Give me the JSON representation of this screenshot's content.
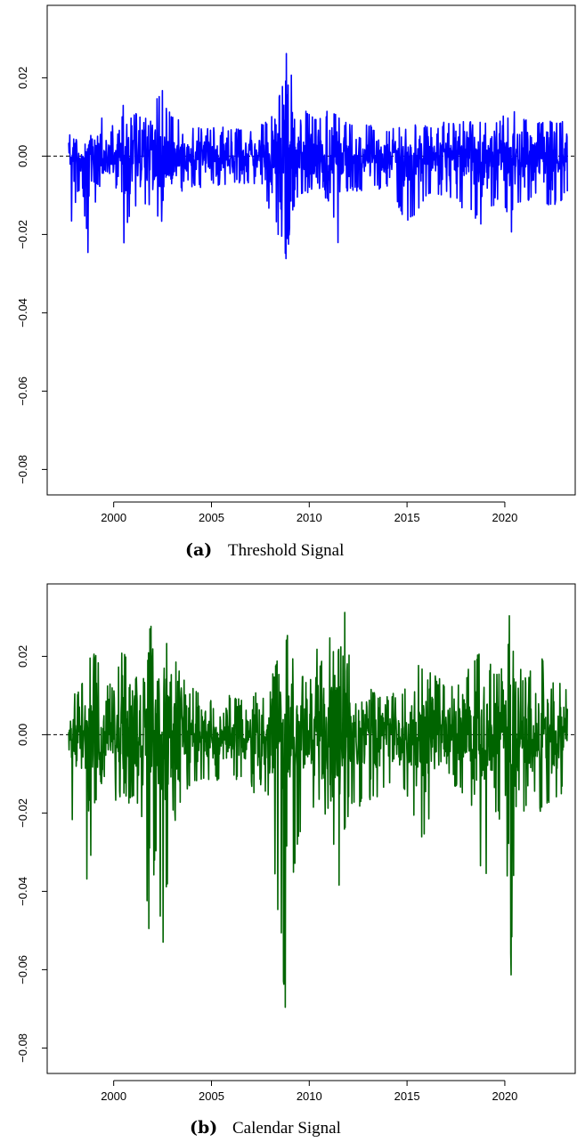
{
  "chart_data": [
    {
      "type": "line",
      "panel": "a",
      "caption_tag": "(a)",
      "caption_text": "Threshold Signal",
      "color": "#0000ff",
      "x_ticks": [
        2000,
        2005,
        2010,
        2015,
        2020
      ],
      "y_ticks": [
        0.02,
        0.0,
        -0.02,
        -0.04,
        -0.06,
        -0.08
      ],
      "y_tick_labels": [
        "0.02",
        "0.00",
        "−0.02",
        "−0.04",
        "−0.06",
        "−0.08"
      ],
      "xlim": [
        1996.6,
        2023.6
      ],
      "ylim": [
        -0.0865,
        0.0385
      ],
      "zero_line": true,
      "series": [
        {
          "x": [
            1997.7,
            1997.9,
            1998.1,
            1998.4,
            1998.7,
            1999.0,
            1999.5,
            2000.0,
            2000.5,
            2001.0,
            2001.5,
            2002.0,
            2002.5,
            2002.8,
            2003.2,
            2004.0,
            2005.0,
            2006.0,
            2007.0,
            2007.8,
            2008.3,
            2008.7,
            2008.85,
            2009.0,
            2009.3,
            2009.8,
            2010.4,
            2011.0,
            2011.6,
            2011.7,
            2012.0,
            2013.0,
            2014.0,
            2015.0,
            2016.0,
            2017.0,
            2018.0,
            2018.9,
            2019.5,
            2020.1,
            2020.25,
            2020.4,
            2021.0,
            2021.6,
            2022.3,
            2022.8,
            2023.2
          ],
          "high": [
            0.004,
            0.01,
            0.008,
            0.006,
            0.016,
            0.012,
            0.01,
            0.008,
            0.014,
            0.012,
            0.01,
            0.013,
            0.018,
            0.012,
            0.01,
            0.008,
            0.008,
            0.007,
            0.007,
            0.009,
            0.012,
            0.02,
            0.029,
            0.025,
            0.013,
            0.012,
            0.01,
            0.012,
            0.011,
            0.009,
            0.009,
            0.008,
            0.007,
            0.008,
            0.008,
            0.009,
            0.009,
            0.009,
            0.009,
            0.011,
            0.019,
            0.012,
            0.01,
            0.009,
            0.01,
            0.009,
            0.01
          ],
          "low": [
            -0.006,
            -0.021,
            -0.01,
            -0.008,
            -0.027,
            -0.014,
            -0.01,
            -0.012,
            -0.023,
            -0.014,
            -0.012,
            -0.015,
            -0.018,
            -0.012,
            -0.01,
            -0.008,
            -0.008,
            -0.007,
            -0.007,
            -0.012,
            -0.018,
            -0.026,
            -0.027,
            -0.02,
            -0.012,
            -0.01,
            -0.008,
            -0.012,
            -0.026,
            -0.01,
            -0.009,
            -0.009,
            -0.008,
            -0.018,
            -0.011,
            -0.01,
            -0.014,
            -0.019,
            -0.012,
            -0.015,
            -0.029,
            -0.014,
            -0.012,
            -0.01,
            -0.014,
            -0.012,
            -0.01
          ]
        }
      ]
    },
    {
      "type": "line",
      "panel": "b",
      "caption_tag": "(b)",
      "caption_text": "Calendar Signal",
      "color": "#006400",
      "x_ticks": [
        2000,
        2005,
        2010,
        2015,
        2020
      ],
      "y_ticks": [
        0.02,
        0.0,
        -0.02,
        -0.04,
        -0.06,
        -0.08
      ],
      "y_tick_labels": [
        "0.02",
        "0.00",
        "−0.02",
        "−0.04",
        "−0.06",
        "−0.08"
      ],
      "xlim": [
        1996.6,
        2023.6
      ],
      "ylim": [
        -0.0865,
        0.0385
      ],
      "zero_line": true,
      "series": [
        {
          "x": [
            1997.7,
            1997.9,
            1998.1,
            1998.4,
            1998.7,
            1999.0,
            1999.5,
            2000.0,
            2000.5,
            2001.0,
            2001.5,
            2001.8,
            2002.2,
            2002.5,
            2002.8,
            2003.2,
            2004.0,
            2005.0,
            2006.0,
            2007.0,
            2007.8,
            2008.3,
            2008.7,
            2008.85,
            2009.0,
            2009.3,
            2009.8,
            2010.4,
            2011.0,
            2011.6,
            2011.8,
            2012.2,
            2013.0,
            2014.0,
            2015.0,
            2015.8,
            2016.5,
            2017.5,
            2018.5,
            2018.9,
            2019.5,
            2020.1,
            2020.25,
            2020.5,
            2021.0,
            2021.6,
            2022.3,
            2022.8,
            2023.2
          ],
          "high": [
            0.006,
            0.011,
            0.01,
            0.015,
            0.02,
            0.022,
            0.015,
            0.012,
            0.023,
            0.015,
            0.014,
            0.032,
            0.016,
            0.012,
            0.031,
            0.02,
            0.012,
            0.01,
            0.01,
            0.01,
            0.015,
            0.018,
            0.027,
            0.028,
            0.022,
            0.017,
            0.015,
            0.022,
            0.025,
            0.022,
            0.036,
            0.015,
            0.012,
            0.01,
            0.012,
            0.02,
            0.015,
            0.012,
            0.02,
            0.022,
            0.016,
            0.02,
            0.032,
            0.02,
            0.015,
            0.018,
            0.022,
            0.014,
            0.012
          ],
          "low": [
            -0.006,
            -0.024,
            -0.018,
            -0.01,
            -0.047,
            -0.018,
            -0.012,
            -0.016,
            -0.02,
            -0.018,
            -0.022,
            -0.057,
            -0.03,
            -0.061,
            -0.036,
            -0.02,
            -0.012,
            -0.012,
            -0.012,
            -0.012,
            -0.034,
            -0.039,
            -0.065,
            -0.084,
            -0.06,
            -0.03,
            -0.022,
            -0.018,
            -0.022,
            -0.043,
            -0.025,
            -0.02,
            -0.018,
            -0.014,
            -0.016,
            -0.031,
            -0.016,
            -0.014,
            -0.02,
            -0.044,
            -0.02,
            -0.03,
            -0.075,
            -0.03,
            -0.02,
            -0.023,
            -0.018,
            -0.016,
            -0.013
          ]
        }
      ]
    }
  ]
}
